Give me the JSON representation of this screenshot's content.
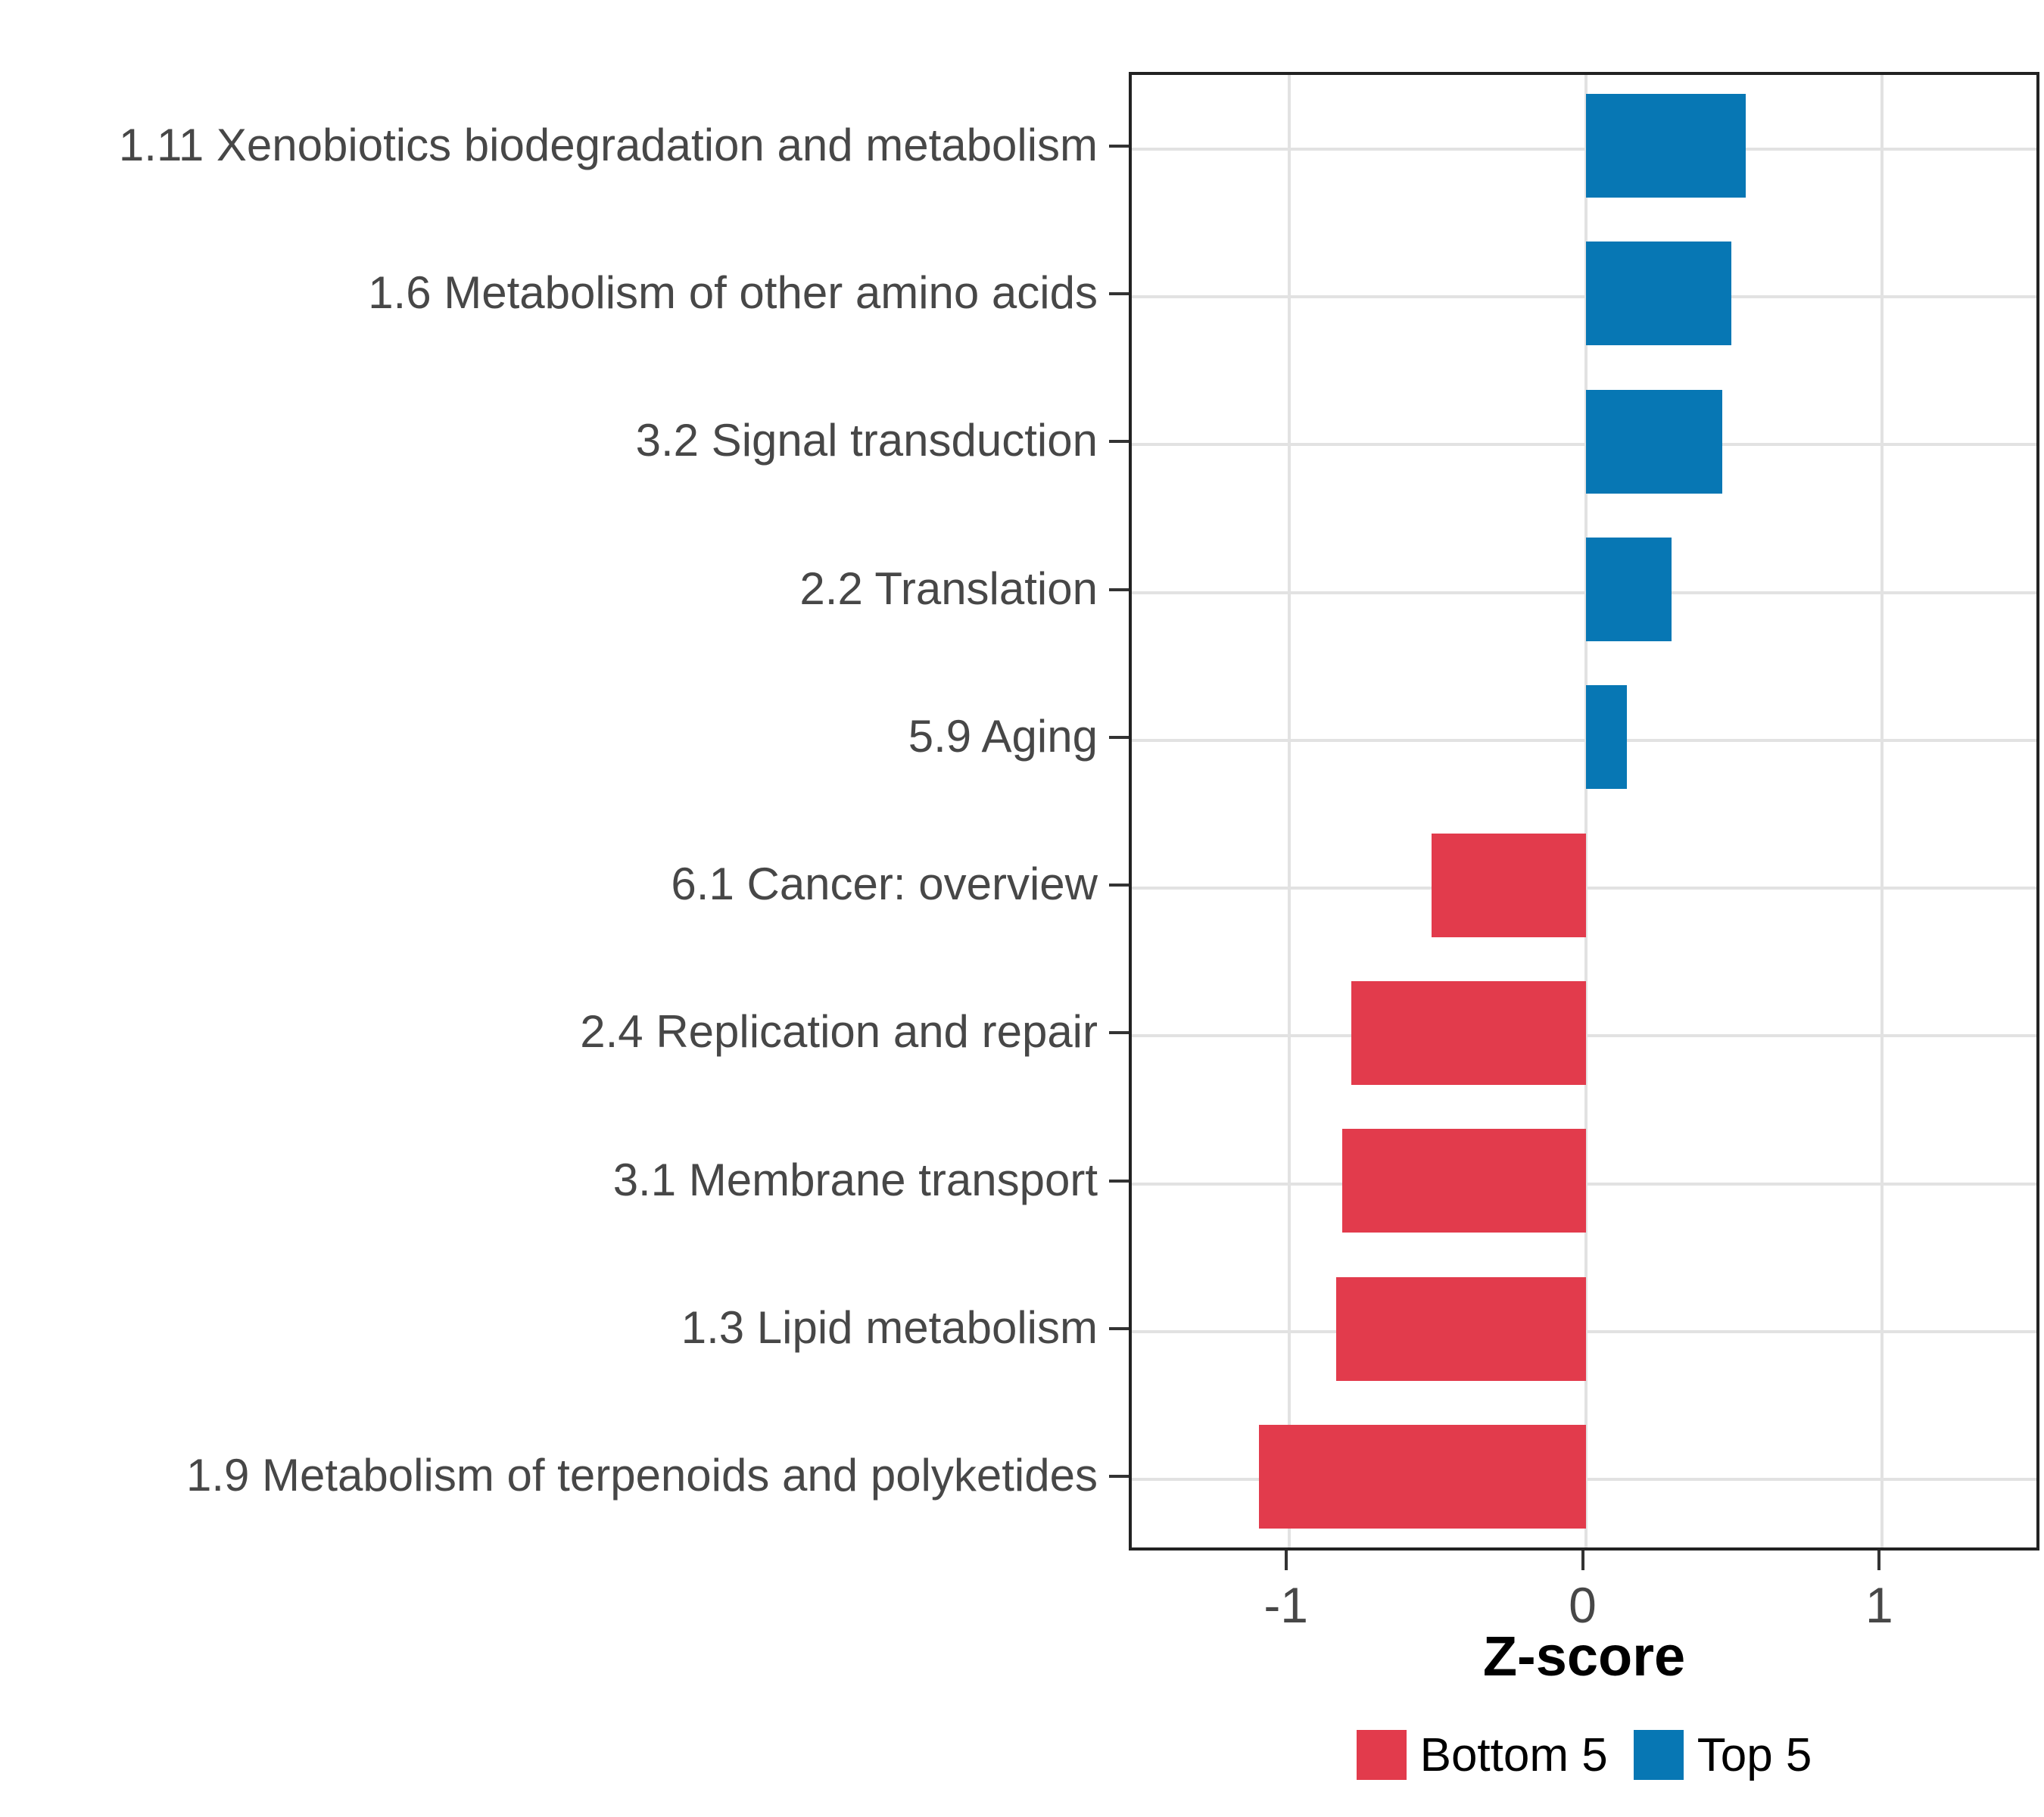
{
  "figure": {
    "background": "#FFFFFF"
  },
  "chart_data": {
    "type": "bar",
    "orientation": "horizontal",
    "title": "",
    "xlabel": "Z-score",
    "ylabel": "",
    "xlim": [
      -1.53,
      1.54
    ],
    "xticks": [
      "-1",
      "0",
      "1"
    ],
    "xtick_values": [
      -1,
      0,
      1
    ],
    "grid": "major-only",
    "categories": [
      "1.11 Xenobiotics biodegradation and metabolism",
      "1.6 Metabolism of other amino acids",
      "3.2 Signal transduction",
      "2.2 Translation",
      "5.9 Aging",
      "6.1 Cancer: overview",
      "2.4 Replication and repair",
      "3.1 Membrane transport",
      "1.3 Lipid metabolism",
      "1.9 Metabolism of terpenoids and polyketides"
    ],
    "values": [
      0.54,
      0.49,
      0.46,
      0.29,
      0.14,
      -0.52,
      -0.79,
      -0.82,
      -0.84,
      -1.1
    ],
    "groups": [
      "Top 5",
      "Top 5",
      "Top 5",
      "Top 5",
      "Top 5",
      "Bottom 5",
      "Bottom 5",
      "Bottom 5",
      "Bottom 5",
      "Bottom 5"
    ],
    "series_colors": {
      "Top 5": "#0777B4",
      "Bottom 5": "#E23B4C"
    },
    "legend": {
      "position": "bottom",
      "entries": [
        {
          "label": "Bottom 5",
          "color": "#E23B4C"
        },
        {
          "label": "Top 5",
          "color": "#0777B4"
        }
      ]
    },
    "style_colors": {
      "axis_text": "#474747",
      "axis_title": "#000000",
      "gridline": "#E2E2E2",
      "panel_border": "#222222",
      "tick_mark": "#333333"
    }
  }
}
